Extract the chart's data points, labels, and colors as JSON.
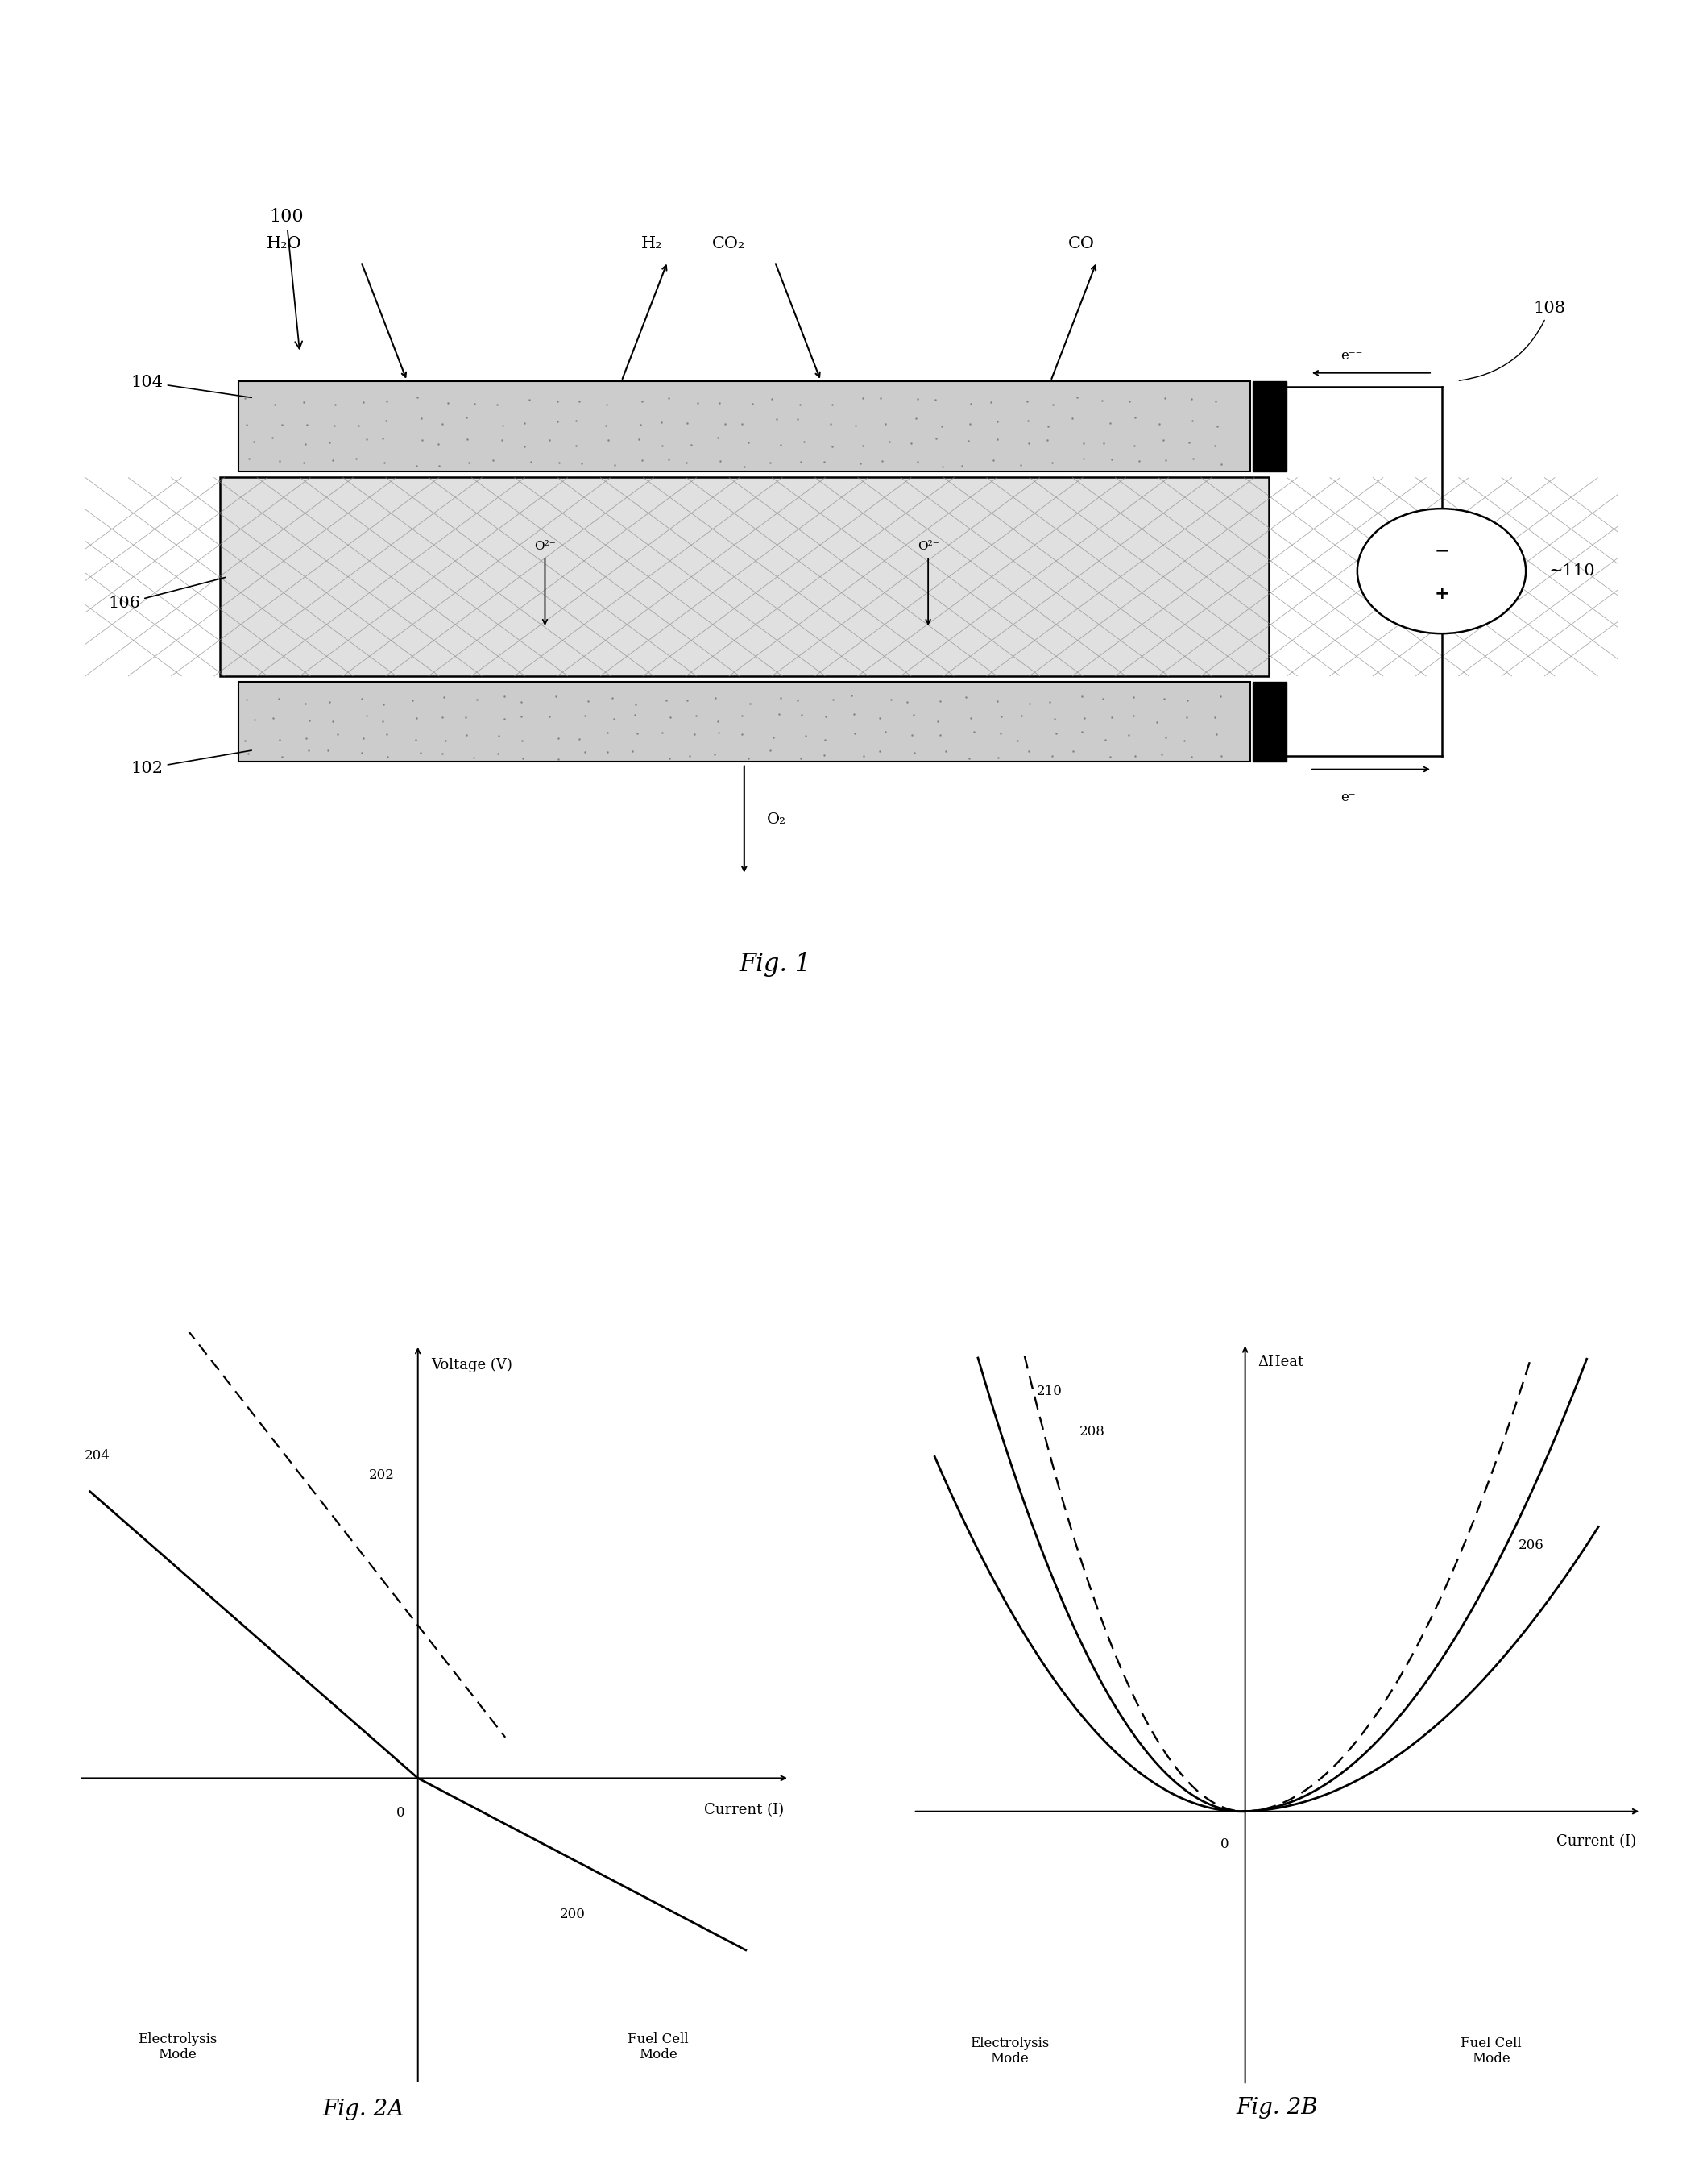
{
  "fig_width": 21.14,
  "fig_height": 27.1,
  "bg_color": "#ffffff",
  "label_100": "100",
  "label_104": "104",
  "label_106": "106",
  "label_102": "102",
  "label_108": "108",
  "label_110": "110",
  "gases_top": [
    "H₂O",
    "H₂",
    "CO₂",
    "CO"
  ],
  "label_O2": "O₂",
  "label_eminus_top": "e⁻⁻",
  "label_eminus_bot": "e⁻",
  "fig1_label": "Fig. 1",
  "fig2a_label": "Fig. 2A",
  "fig2b_label": "Fig. 2B",
  "label_202": "202",
  "label_200": "200",
  "label_204": "204",
  "label_206": "206",
  "label_208": "208",
  "label_210": "210",
  "voltage_label": "Voltage (V)",
  "current_label_2a": "Current (I)",
  "current_label_2b": "Current (I)",
  "delta_heat_label": "ΔHeat",
  "electrolysis_label": "Electrolysis\nMode",
  "fuel_cell_label": "Fuel Cell\nMode",
  "label_0_2a": "0",
  "label_0_2b": "0",
  "gray_light": "#cccccc",
  "gray_mid": "#bbbbbb",
  "hatch_color": "#999999",
  "black": "#000000",
  "o2minus_label": "O²⁻"
}
